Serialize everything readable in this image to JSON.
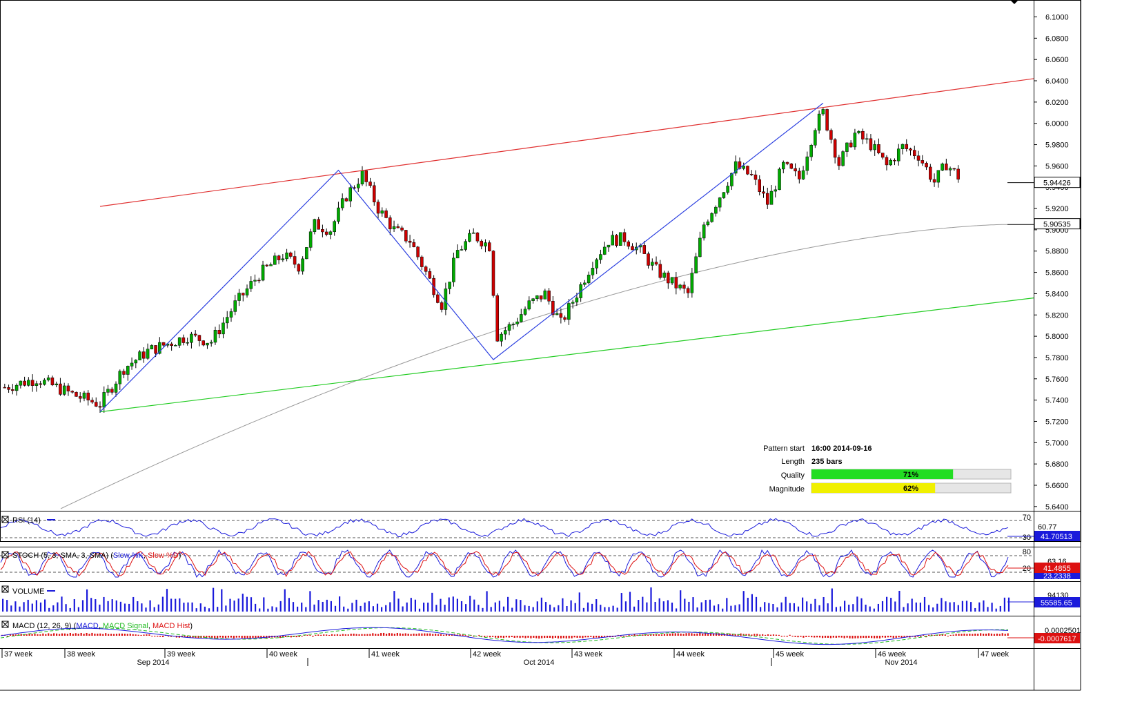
{
  "chart_data": {
    "type": "candlestick",
    "instrument_price": {
      "y_ticks": [
        "6.1000",
        "6.0800",
        "6.0600",
        "6.0400",
        "6.0200",
        "6.0000",
        "5.9800",
        "5.9600",
        "5.9400",
        "5.9200",
        "5.9000",
        "5.8800",
        "5.8600",
        "5.8400",
        "5.8200",
        "5.8000",
        "5.7800",
        "5.7600",
        "5.7400",
        "5.7200",
        "5.7000",
        "5.6800",
        "5.6600",
        "5.6400"
      ],
      "ylim": [
        5.636,
        6.112
      ],
      "current_price": "5.94426",
      "sma_value": "5.90535"
    },
    "channel": {
      "upper": {
        "start": {
          "bar": 0,
          "price": 5.922
        },
        "end": {
          "bar": 235,
          "price": 6.042
        }
      },
      "lower": {
        "start": {
          "bar": 0,
          "price": 5.729
        },
        "end": {
          "bar": 235,
          "price": 5.836
        }
      },
      "zigzag": [
        {
          "bar": 0,
          "price": 5.729
        },
        {
          "bar": 60,
          "price": 5.956
        },
        {
          "bar": 99,
          "price": 5.778
        },
        {
          "bar": 182,
          "price": 6.019
        }
      ]
    },
    "pattern_info": {
      "start_label": "Pattern start",
      "start_value": "16:00 2014-09-16",
      "length_label": "Length",
      "length_value": "235 bars",
      "quality_label": "Quality",
      "quality_value": 71,
      "quality_text": "71%",
      "magnitude_label": "Magnitude",
      "magnitude_value": 62,
      "magnitude_text": "62%"
    },
    "x_axis": {
      "weeks": [
        "37 week",
        "38 week",
        "39 week",
        "40 week",
        "41 week",
        "42 week",
        "43 week",
        "44 week",
        "45 week",
        "46 week",
        "47 week"
      ],
      "months": [
        "Sep 2014",
        "Oct 2014",
        "Nov 2014"
      ]
    },
    "rsi": {
      "label": "RSI (14)",
      "levels": [
        "70",
        "30"
      ],
      "extra_tick": "60.77",
      "value": "41.70513"
    },
    "stoch": {
      "label": "STOCH (5, 3, SMA, 3, SMA)",
      "k_label": "Slow %K",
      "d_label": "Slow %D",
      "levels": [
        "80",
        "20"
      ],
      "extra_tick": "63.16",
      "value_k": "41.4855",
      "value_d": "23.2338"
    },
    "volume": {
      "label": "VOLUME",
      "extra_tick": "94130",
      "value": "55585.65"
    },
    "macd": {
      "label": "MACD (12, 26, 9)",
      "macd_label": "MACD",
      "signal_label": "MACD Signal",
      "hist_label": "MACD Hist",
      "extra_tick": "0.0002501",
      "value": "-0.0007617"
    },
    "colors": {
      "up": "#00aa00",
      "down": "#cc0000",
      "upper_line": "#e03030",
      "lower_line": "#22cc22",
      "zigzag": "#2b3fe0",
      "sma": "#999999",
      "quality_bar": "#22dd22",
      "magnitude_bar": "#f0f000"
    }
  }
}
